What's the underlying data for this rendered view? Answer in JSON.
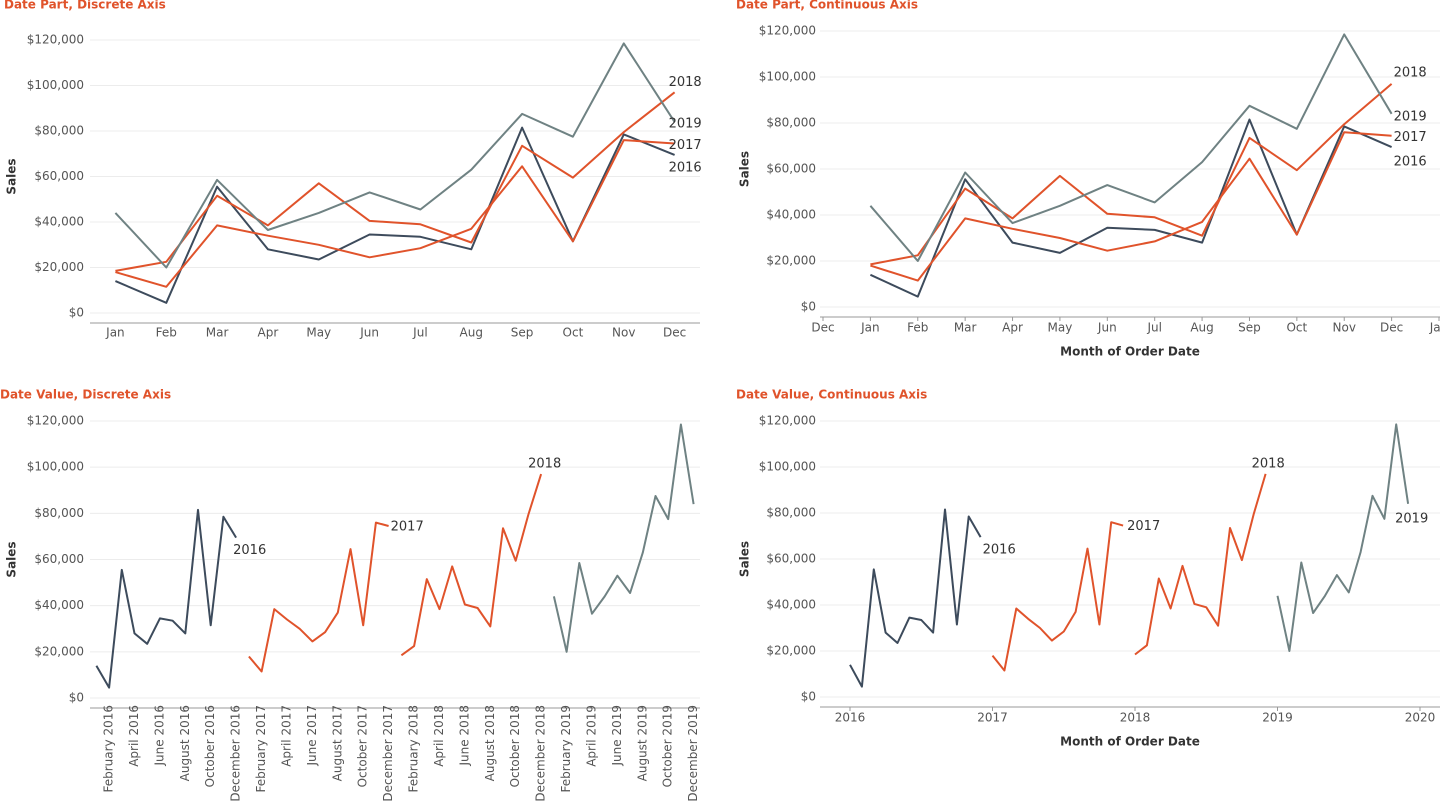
{
  "chart_data": [
    {
      "type": "line",
      "title": "Date Part, Discrete Axis",
      "y_label": "Sales",
      "categories": [
        "Jan",
        "Feb",
        "Mar",
        "Apr",
        "May",
        "Jun",
        "Jul",
        "Aug",
        "Sep",
        "Oct",
        "Nov",
        "Dec"
      ],
      "ylim": [
        0,
        120000
      ],
      "yticks": [
        {
          "value": 0,
          "label": "$0"
        },
        {
          "value": 20000,
          "label": "$20,000"
        },
        {
          "value": 40000,
          "label": "$40,000"
        },
        {
          "value": 60000,
          "label": "$60,000"
        },
        {
          "value": 80000,
          "label": "$80,000"
        },
        {
          "value": 100000,
          "label": "$100,000"
        },
        {
          "value": 120000,
          "label": "$120,000"
        }
      ],
      "grid": true,
      "series": [
        {
          "name": "2016",
          "color": "#3d4b5c",
          "values": [
            14000,
            4500,
            55500,
            28000,
            23500,
            34500,
            33500,
            28000,
            81500,
            31500,
            78500,
            69500
          ]
        },
        {
          "name": "2017",
          "color": "#e0532b",
          "values": [
            18000,
            11500,
            38500,
            34000,
            30000,
            24500,
            28500,
            37000,
            64500,
            31500,
            76000,
            74500
          ]
        },
        {
          "name": "2018",
          "color": "#e0532b",
          "values": [
            18500,
            22500,
            51500,
            38500,
            57000,
            40500,
            39000,
            31000,
            73500,
            59500,
            79500,
            97000
          ]
        },
        {
          "name": "2019",
          "color": "#6f8283",
          "values": [
            44000,
            20000,
            58500,
            36500,
            44000,
            53000,
            45500,
            63000,
            87500,
            77500,
            118500,
            84000
          ]
        }
      ]
    },
    {
      "type": "line",
      "title": "Date Part, Continuous Axis",
      "y_label": "Sales",
      "x_label": "Month of Order Date",
      "x": [
        1,
        2,
        3,
        4,
        5,
        6,
        7,
        8,
        9,
        10,
        11,
        12
      ],
      "xlim": [
        0,
        13
      ],
      "xticks": [
        {
          "value": 0,
          "label": "Dec"
        },
        {
          "value": 1,
          "label": "Jan"
        },
        {
          "value": 2,
          "label": "Feb"
        },
        {
          "value": 3,
          "label": "Mar"
        },
        {
          "value": 4,
          "label": "Apr"
        },
        {
          "value": 5,
          "label": "May"
        },
        {
          "value": 6,
          "label": "Jun"
        },
        {
          "value": 7,
          "label": "Jul"
        },
        {
          "value": 8,
          "label": "Aug"
        },
        {
          "value": 9,
          "label": "Sep"
        },
        {
          "value": 10,
          "label": "Oct"
        },
        {
          "value": 11,
          "label": "Nov"
        },
        {
          "value": 12,
          "label": "Dec"
        },
        {
          "value": 13,
          "label": "Jan"
        }
      ],
      "ylim": [
        0,
        120000
      ],
      "yticks": [
        {
          "value": 0,
          "label": "$0"
        },
        {
          "value": 20000,
          "label": "$20,000"
        },
        {
          "value": 40000,
          "label": "$40,000"
        },
        {
          "value": 60000,
          "label": "$60,000"
        },
        {
          "value": 80000,
          "label": "$80,000"
        },
        {
          "value": 100000,
          "label": "$100,000"
        },
        {
          "value": 120000,
          "label": "$120,000"
        }
      ],
      "grid": true,
      "series": [
        {
          "name": "2016",
          "color": "#3d4b5c",
          "values": [
            14000,
            4500,
            55500,
            28000,
            23500,
            34500,
            33500,
            28000,
            81500,
            31500,
            78500,
            69500
          ]
        },
        {
          "name": "2017",
          "color": "#e0532b",
          "values": [
            18000,
            11500,
            38500,
            34000,
            30000,
            24500,
            28500,
            37000,
            64500,
            31500,
            76000,
            74500
          ]
        },
        {
          "name": "2018",
          "color": "#e0532b",
          "values": [
            18500,
            22500,
            51500,
            38500,
            57000,
            40500,
            39000,
            31000,
            73500,
            59500,
            79500,
            97000
          ]
        },
        {
          "name": "2019",
          "color": "#6f8283",
          "values": [
            44000,
            20000,
            58500,
            36500,
            44000,
            53000,
            45500,
            63000,
            87500,
            77500,
            118500,
            84000
          ]
        }
      ]
    },
    {
      "type": "line",
      "title": "Date Value, Discrete Axis",
      "y_label": "Sales",
      "categories": [
        null,
        "February 2016",
        null,
        "April 2016",
        null,
        "June 2016",
        null,
        "August 2016",
        null,
        "October 2016",
        null,
        "December 2016",
        null,
        "February 2017",
        null,
        "April 2017",
        null,
        "June 2017",
        null,
        "August 2017",
        null,
        "October 2017",
        null,
        "December 2017",
        null,
        "February 2018",
        null,
        "April 2018",
        null,
        "June 2018",
        null,
        "August 2018",
        null,
        "October 2018",
        null,
        "December 2018",
        null,
        "February 2019",
        null,
        "April 2019",
        null,
        "June 2019",
        null,
        "August 2019",
        null,
        "October 2019",
        null,
        "December 2019"
      ],
      "ylim": [
        0,
        120000
      ],
      "yticks": [
        {
          "value": 0,
          "label": "$0"
        },
        {
          "value": 20000,
          "label": "$20,000"
        },
        {
          "value": 40000,
          "label": "$40,000"
        },
        {
          "value": 60000,
          "label": "$60,000"
        },
        {
          "value": 80000,
          "label": "$80,000"
        },
        {
          "value": 100000,
          "label": "$100,000"
        },
        {
          "value": 120000,
          "label": "$120,000"
        }
      ],
      "grid": true,
      "series": [
        {
          "name": "2016",
          "color": "#3d4b5c",
          "values": [
            14000,
            4500,
            55500,
            28000,
            23500,
            34500,
            33500,
            28000,
            81500,
            31500,
            78500,
            69500,
            null,
            null,
            null,
            null,
            null,
            null,
            null,
            null,
            null,
            null,
            null,
            null,
            null,
            null,
            null,
            null,
            null,
            null,
            null,
            null,
            null,
            null,
            null,
            null,
            null,
            null,
            null,
            null,
            null,
            null,
            null,
            null,
            null,
            null,
            null,
            null
          ]
        },
        {
          "name": "2017",
          "color": "#e0532b",
          "values": [
            null,
            null,
            null,
            null,
            null,
            null,
            null,
            null,
            null,
            null,
            null,
            null,
            18000,
            11500,
            38500,
            34000,
            30000,
            24500,
            28500,
            37000,
            64500,
            31500,
            76000,
            74500,
            null,
            null,
            null,
            null,
            null,
            null,
            null,
            null,
            null,
            null,
            null,
            null,
            null,
            null,
            null,
            null,
            null,
            null,
            null,
            null,
            null,
            null,
            null,
            null
          ]
        },
        {
          "name": "2018",
          "color": "#e0532b",
          "values": [
            null,
            null,
            null,
            null,
            null,
            null,
            null,
            null,
            null,
            null,
            null,
            null,
            null,
            null,
            null,
            null,
            null,
            null,
            null,
            null,
            null,
            null,
            null,
            null,
            18500,
            22500,
            51500,
            38500,
            57000,
            40500,
            39000,
            31000,
            73500,
            59500,
            79500,
            97000,
            null,
            null,
            null,
            null,
            null,
            null,
            null,
            null,
            null,
            null,
            null,
            null
          ]
        },
        {
          "color": "#6f8283",
          "values": [
            null,
            null,
            null,
            null,
            null,
            null,
            null,
            null,
            null,
            null,
            null,
            null,
            null,
            null,
            null,
            null,
            null,
            null,
            null,
            null,
            null,
            null,
            null,
            null,
            null,
            null,
            null,
            null,
            null,
            null,
            null,
            null,
            null,
            null,
            null,
            null,
            44000,
            20000,
            58500,
            36500,
            44000,
            53000,
            45500,
            63000,
            87500,
            77500,
            118500,
            84000
          ]
        }
      ]
    },
    {
      "type": "line",
      "title": "Date Value, Continuous Axis",
      "y_label": "Sales",
      "x_label": "Month of Order Date",
      "xlim": [
        2016,
        2020
      ],
      "xticks": [
        2016,
        2017,
        2018,
        2019,
        2020
      ],
      "ylim": [
        0,
        120000
      ],
      "yticks": [
        {
          "value": 0,
          "label": "$0"
        },
        {
          "value": 20000,
          "label": "$20,000"
        },
        {
          "value": 40000,
          "label": "$40,000"
        },
        {
          "value": 60000,
          "label": "$60,000"
        },
        {
          "value": 80000,
          "label": "$80,000"
        },
        {
          "value": 100000,
          "label": "$100,000"
        },
        {
          "value": 120000,
          "label": "$120,000"
        }
      ],
      "grid": true,
      "series": [
        {
          "name": "2016",
          "color": "#3d4b5c",
          "x": [
            "2016-01",
            "2016-02",
            "2016-03",
            "2016-04",
            "2016-05",
            "2016-06",
            "2016-07",
            "2016-08",
            "2016-09",
            "2016-10",
            "2016-11",
            "2016-12"
          ],
          "values": [
            14000,
            4500,
            55500,
            28000,
            23500,
            34500,
            33500,
            28000,
            81500,
            31500,
            78500,
            69500
          ]
        },
        {
          "name": "2017",
          "color": "#e0532b",
          "x": [
            "2017-01",
            "2017-02",
            "2017-03",
            "2017-04",
            "2017-05",
            "2017-06",
            "2017-07",
            "2017-08",
            "2017-09",
            "2017-10",
            "2017-11",
            "2017-12"
          ],
          "values": [
            18000,
            11500,
            38500,
            34000,
            30000,
            24500,
            28500,
            37000,
            64500,
            31500,
            76000,
            74500
          ]
        },
        {
          "name": "2018",
          "color": "#e0532b",
          "x": [
            "2018-01",
            "2018-02",
            "2018-03",
            "2018-04",
            "2018-05",
            "2018-06",
            "2018-07",
            "2018-08",
            "2018-09",
            "2018-10",
            "2018-11",
            "2018-12"
          ],
          "values": [
            18500,
            22500,
            51500,
            38500,
            57000,
            40500,
            39000,
            31000,
            73500,
            59500,
            79500,
            97000
          ]
        },
        {
          "name": "2019",
          "color": "#6f8283",
          "x": [
            "2019-01",
            "2019-02",
            "2019-03",
            "2019-04",
            "2019-05",
            "2019-06",
            "2019-07",
            "2019-08",
            "2019-09",
            "2019-10",
            "2019-11",
            "2019-12"
          ],
          "values": [
            44000,
            20000,
            58500,
            36500,
            44000,
            53000,
            45500,
            63000,
            87500,
            77500,
            118500,
            84000
          ]
        }
      ]
    }
  ]
}
